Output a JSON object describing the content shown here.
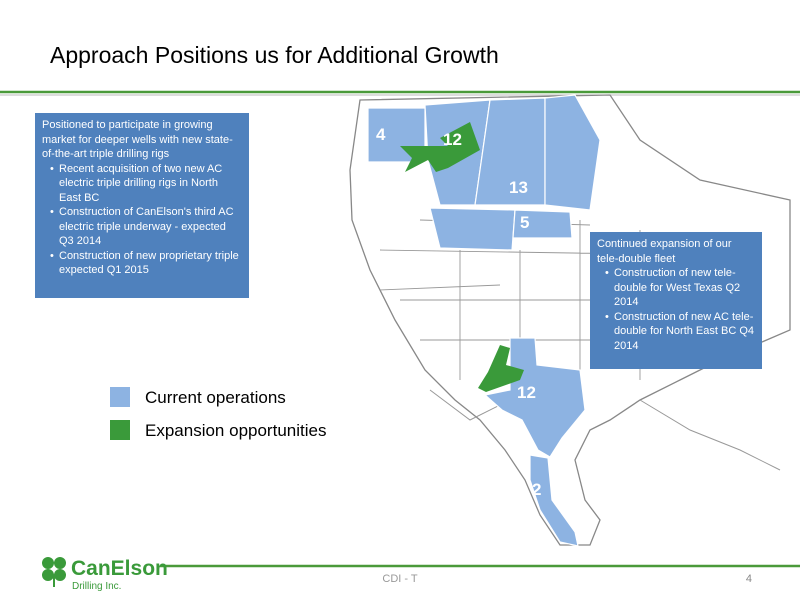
{
  "header": {
    "title": "Approach Positions us for Additional Growth"
  },
  "left_box": {
    "heading": "Positioned to participate in growing market for deeper wells with new state-of-the-art triple drilling rigs",
    "bullets": [
      "Recent acquisition of two new AC electric triple drilling rigs in North East BC",
      "Construction of CanElson's third AC electric triple underway - expected Q3 2014",
      "Construction of new proprietary triple  expected Q1 2015"
    ]
  },
  "right_box": {
    "heading": "Continued  expansion of our tele-double  fleet",
    "bullets": [
      "Construction of new tele-double for West Texas Q2 2014",
      "Construction of new AC tele-double  for North East BC Q4 2014"
    ]
  },
  "map_labels": [
    4,
    12,
    13,
    5,
    12,
    2
  ],
  "legend": [
    "Current operations",
    "Expansion opportunities"
  ],
  "footer": {
    "logo": "CanElson",
    "logo_sub": "Drilling Inc.",
    "center": "CDI - T",
    "page": "4"
  }
}
